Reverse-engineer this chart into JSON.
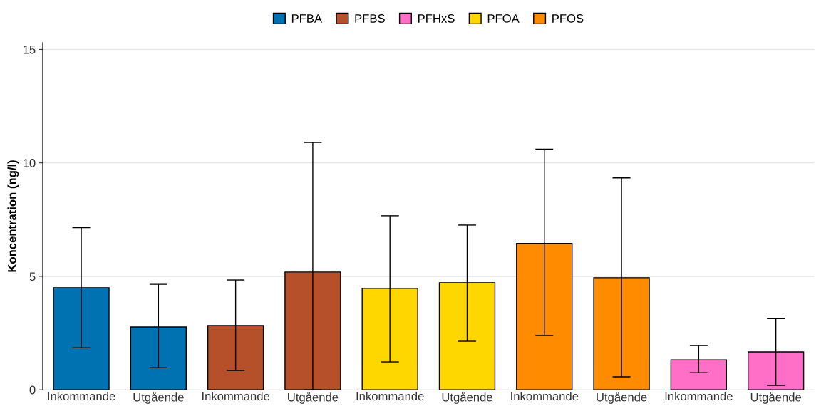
{
  "chart_data": {
    "type": "bar",
    "ylabel": "Koncentration (ng/l)",
    "categories": [
      "Inkommande",
      "Utgående",
      "Inkommande",
      "Utgående",
      "Inkommande",
      "Utgående",
      "Inkommande",
      "Utgående",
      "Inkommande",
      "Utgående"
    ],
    "series": [
      {
        "name": "PFBA",
        "color": "#0072b2",
        "values": [
          4.5,
          2.77,
          null,
          null,
          null,
          null,
          null,
          null,
          null,
          null
        ],
        "errors": [
          [
            1.85,
            7.15
          ],
          [
            0.97,
            4.65
          ],
          null,
          null,
          null,
          null,
          null,
          null,
          null,
          null
        ]
      },
      {
        "name": "PFBS",
        "color": "#b5502a",
        "values": [
          null,
          null,
          2.83,
          5.19,
          null,
          null,
          null,
          null,
          null,
          null
        ],
        "errors": [
          null,
          null,
          [
            0.85,
            4.84
          ],
          [
            0,
            10.9
          ],
          null,
          null,
          null,
          null,
          null,
          null
        ]
      },
      {
        "name": "PFHxS",
        "color": "#ff6ec7",
        "values": [
          null,
          null,
          null,
          null,
          null,
          null,
          null,
          null,
          1.32,
          1.67
        ],
        "errors": [
          null,
          null,
          null,
          null,
          null,
          null,
          null,
          null,
          [
            0.75,
            1.95
          ],
          [
            0.19,
            3.14
          ]
        ]
      },
      {
        "name": "PFOA",
        "color": "#ffd700",
        "values": [
          null,
          null,
          null,
          null,
          4.47,
          4.72,
          null,
          null,
          null,
          null
        ],
        "errors": [
          null,
          null,
          null,
          null,
          [
            1.23,
            7.67
          ],
          [
            2.14,
            7.26
          ],
          null,
          null,
          null,
          null
        ]
      },
      {
        "name": "PFOS",
        "color": "#ff8c00",
        "values": [
          null,
          null,
          null,
          null,
          null,
          null,
          6.45,
          4.94,
          null,
          null
        ],
        "errors": [
          null,
          null,
          null,
          null,
          null,
          null,
          [
            2.39,
            10.6
          ],
          [
            0.57,
            9.34
          ],
          null,
          null
        ]
      }
    ],
    "ylim": [
      0,
      15.3
    ],
    "yticks": [
      0,
      5,
      10,
      15
    ],
    "grid": "y",
    "legend": "top"
  }
}
